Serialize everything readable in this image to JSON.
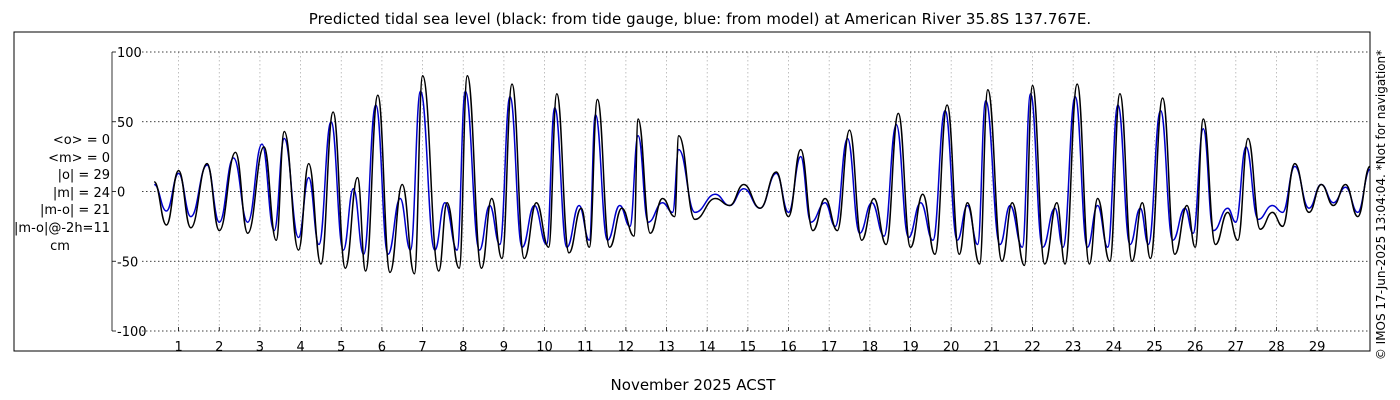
{
  "title": "Predicted tidal sea level (black: from tide gauge, blue: from model) at American River 35.8S 137.767E.",
  "stats": [
    "<o> = 0",
    "<m> = 0",
    "|o| = 29",
    "|m| = 24",
    "|m-o| = 21",
    "|m-o|@-2h=11"
  ],
  "stats_unit": "cm",
  "copyright": "© IMOS 17-Jun-2025 13:04:04. *Not for navigation*",
  "colors": {
    "observed": "#000000",
    "model": "#0000cc",
    "grid": "#b0b0b0"
  },
  "chart_data": {
    "type": "line",
    "title": "Predicted tidal sea level (black: from tide gauge, blue: from model) at American River 35.8S 137.767E.",
    "xlabel": "November 2025 ACST",
    "ylabel": "",
    "xlim": [
      0.1,
      30.3
    ],
    "ylim": [
      -100,
      100
    ],
    "xticks": [
      1,
      2,
      3,
      4,
      5,
      6,
      7,
      8,
      9,
      10,
      11,
      12,
      13,
      14,
      15,
      16,
      17,
      18,
      19,
      20,
      21,
      22,
      23,
      24,
      25,
      26,
      27,
      28,
      29
    ],
    "yticks": [
      -100,
      -50,
      0,
      50,
      100
    ],
    "grid": true,
    "series": [
      {
        "name": "black: from tide gauge",
        "color": "#000000",
        "peaks": [
          {
            "x": 0.4,
            "y": 7
          },
          {
            "x": 0.7,
            "y": -24
          },
          {
            "x": 1.0,
            "y": 15
          },
          {
            "x": 1.3,
            "y": -26
          },
          {
            "x": 1.7,
            "y": 20
          },
          {
            "x": 2.0,
            "y": -28
          },
          {
            "x": 2.4,
            "y": 28
          },
          {
            "x": 2.7,
            "y": -30
          },
          {
            "x": 3.1,
            "y": 32
          },
          {
            "x": 3.4,
            "y": -35
          },
          {
            "x": 3.6,
            "y": 43
          },
          {
            "x": 3.95,
            "y": -42
          },
          {
            "x": 4.2,
            "y": 20
          },
          {
            "x": 4.5,
            "y": -52
          },
          {
            "x": 4.8,
            "y": 57
          },
          {
            "x": 5.1,
            "y": -55
          },
          {
            "x": 5.4,
            "y": 10
          },
          {
            "x": 5.6,
            "y": -57
          },
          {
            "x": 5.9,
            "y": 69
          },
          {
            "x": 6.2,
            "y": -58
          },
          {
            "x": 6.5,
            "y": 5
          },
          {
            "x": 6.8,
            "y": -59
          },
          {
            "x": 7.0,
            "y": 83
          },
          {
            "x": 7.4,
            "y": -57
          },
          {
            "x": 7.6,
            "y": -8
          },
          {
            "x": 7.9,
            "y": -55
          },
          {
            "x": 8.1,
            "y": 83
          },
          {
            "x": 8.45,
            "y": -55
          },
          {
            "x": 8.7,
            "y": -5
          },
          {
            "x": 8.95,
            "y": -48
          },
          {
            "x": 9.2,
            "y": 77
          },
          {
            "x": 9.5,
            "y": -48
          },
          {
            "x": 9.8,
            "y": -8
          },
          {
            "x": 10.1,
            "y": -40
          },
          {
            "x": 10.3,
            "y": 70
          },
          {
            "x": 10.6,
            "y": -44
          },
          {
            "x": 10.9,
            "y": -12
          },
          {
            "x": 11.1,
            "y": -40
          },
          {
            "x": 11.3,
            "y": 66
          },
          {
            "x": 11.6,
            "y": -40
          },
          {
            "x": 11.9,
            "y": -12
          },
          {
            "x": 12.2,
            "y": -32
          },
          {
            "x": 12.3,
            "y": 52
          },
          {
            "x": 12.6,
            "y": -30
          },
          {
            "x": 12.9,
            "y": -5
          },
          {
            "x": 13.2,
            "y": -18
          },
          {
            "x": 13.3,
            "y": 40
          },
          {
            "x": 13.7,
            "y": -20
          },
          {
            "x": 14.2,
            "y": -5
          },
          {
            "x": 14.55,
            "y": -10
          },
          {
            "x": 14.9,
            "y": 5
          },
          {
            "x": 15.3,
            "y": -12
          },
          {
            "x": 15.7,
            "y": 14
          },
          {
            "x": 16.0,
            "y": -18
          },
          {
            "x": 16.3,
            "y": 30
          },
          {
            "x": 16.6,
            "y": -28
          },
          {
            "x": 16.9,
            "y": -5
          },
          {
            "x": 17.2,
            "y": -28
          },
          {
            "x": 17.5,
            "y": 44
          },
          {
            "x": 17.8,
            "y": -35
          },
          {
            "x": 18.1,
            "y": -5
          },
          {
            "x": 18.4,
            "y": -38
          },
          {
            "x": 18.7,
            "y": 56
          },
          {
            "x": 19.0,
            "y": -40
          },
          {
            "x": 19.3,
            "y": -2
          },
          {
            "x": 19.6,
            "y": -45
          },
          {
            "x": 19.9,
            "y": 62
          },
          {
            "x": 20.2,
            "y": -45
          },
          {
            "x": 20.4,
            "y": -8
          },
          {
            "x": 20.7,
            "y": -52
          },
          {
            "x": 20.9,
            "y": 73
          },
          {
            "x": 21.25,
            "y": -50
          },
          {
            "x": 21.5,
            "y": -8
          },
          {
            "x": 21.8,
            "y": -53
          },
          {
            "x": 22.0,
            "y": 76
          },
          {
            "x": 22.3,
            "y": -52
          },
          {
            "x": 22.6,
            "y": -8
          },
          {
            "x": 22.8,
            "y": -52
          },
          {
            "x": 23.1,
            "y": 77
          },
          {
            "x": 23.4,
            "y": -52
          },
          {
            "x": 23.6,
            "y": -5
          },
          {
            "x": 23.9,
            "y": -50
          },
          {
            "x": 24.15,
            "y": 70
          },
          {
            "x": 24.45,
            "y": -50
          },
          {
            "x": 24.7,
            "y": -8
          },
          {
            "x": 24.9,
            "y": -48
          },
          {
            "x": 25.2,
            "y": 67
          },
          {
            "x": 25.5,
            "y": -45
          },
          {
            "x": 25.8,
            "y": -10
          },
          {
            "x": 26.0,
            "y": -40
          },
          {
            "x": 26.2,
            "y": 52
          },
          {
            "x": 26.5,
            "y": -38
          },
          {
            "x": 26.8,
            "y": -15
          },
          {
            "x": 27.05,
            "y": -35
          },
          {
            "x": 27.3,
            "y": 38
          },
          {
            "x": 27.6,
            "y": -27
          },
          {
            "x": 27.9,
            "y": -15
          },
          {
            "x": 28.15,
            "y": -25
          },
          {
            "x": 28.45,
            "y": 20
          },
          {
            "x": 28.8,
            "y": -15
          },
          {
            "x": 29.1,
            "y": 5
          },
          {
            "x": 29.4,
            "y": -10
          },
          {
            "x": 29.7,
            "y": 5
          },
          {
            "x": 30.0,
            "y": -18
          },
          {
            "x": 30.3,
            "y": 18
          }
        ]
      },
      {
        "name": "blue: from model",
        "color": "#0000cc",
        "peaks": [
          {
            "x": 0.4,
            "y": 5
          },
          {
            "x": 0.7,
            "y": -14
          },
          {
            "x": 1.0,
            "y": 13
          },
          {
            "x": 1.3,
            "y": -18
          },
          {
            "x": 1.7,
            "y": 19
          },
          {
            "x": 2.0,
            "y": -22
          },
          {
            "x": 2.35,
            "y": 24
          },
          {
            "x": 2.7,
            "y": -22
          },
          {
            "x": 3.05,
            "y": 34
          },
          {
            "x": 3.35,
            "y": -28
          },
          {
            "x": 3.6,
            "y": 38
          },
          {
            "x": 3.95,
            "y": -33
          },
          {
            "x": 4.2,
            "y": 10
          },
          {
            "x": 4.45,
            "y": -38
          },
          {
            "x": 4.75,
            "y": 50
          },
          {
            "x": 5.05,
            "y": -42
          },
          {
            "x": 5.3,
            "y": 2
          },
          {
            "x": 5.55,
            "y": -45
          },
          {
            "x": 5.85,
            "y": 62
          },
          {
            "x": 6.15,
            "y": -45
          },
          {
            "x": 6.45,
            "y": -5
          },
          {
            "x": 6.7,
            "y": -42
          },
          {
            "x": 6.95,
            "y": 72
          },
          {
            "x": 7.3,
            "y": -42
          },
          {
            "x": 7.55,
            "y": -8
          },
          {
            "x": 7.85,
            "y": -42
          },
          {
            "x": 8.05,
            "y": 72
          },
          {
            "x": 8.4,
            "y": -42
          },
          {
            "x": 8.65,
            "y": -10
          },
          {
            "x": 8.9,
            "y": -38
          },
          {
            "x": 9.15,
            "y": 68
          },
          {
            "x": 9.45,
            "y": -40
          },
          {
            "x": 9.75,
            "y": -10
          },
          {
            "x": 10.05,
            "y": -38
          },
          {
            "x": 10.25,
            "y": 60
          },
          {
            "x": 10.55,
            "y": -40
          },
          {
            "x": 10.85,
            "y": -10
          },
          {
            "x": 11.1,
            "y": -35
          },
          {
            "x": 11.25,
            "y": 55
          },
          {
            "x": 11.55,
            "y": -35
          },
          {
            "x": 11.85,
            "y": -10
          },
          {
            "x": 12.1,
            "y": -25
          },
          {
            "x": 12.3,
            "y": 40
          },
          {
            "x": 12.55,
            "y": -22
          },
          {
            "x": 12.9,
            "y": -8
          },
          {
            "x": 13.15,
            "y": -15
          },
          {
            "x": 13.3,
            "y": 30
          },
          {
            "x": 13.7,
            "y": -15
          },
          {
            "x": 14.2,
            "y": -2
          },
          {
            "x": 14.55,
            "y": -10
          },
          {
            "x": 14.9,
            "y": 2
          },
          {
            "x": 15.3,
            "y": -12
          },
          {
            "x": 15.7,
            "y": 13
          },
          {
            "x": 16.0,
            "y": -15
          },
          {
            "x": 16.3,
            "y": 25
          },
          {
            "x": 16.55,
            "y": -22
          },
          {
            "x": 16.9,
            "y": -8
          },
          {
            "x": 17.15,
            "y": -25
          },
          {
            "x": 17.45,
            "y": 38
          },
          {
            "x": 17.75,
            "y": -30
          },
          {
            "x": 18.05,
            "y": -8
          },
          {
            "x": 18.35,
            "y": -32
          },
          {
            "x": 18.65,
            "y": 48
          },
          {
            "x": 18.95,
            "y": -33
          },
          {
            "x": 19.25,
            "y": -8
          },
          {
            "x": 19.55,
            "y": -35
          },
          {
            "x": 19.85,
            "y": 58
          },
          {
            "x": 20.15,
            "y": -35
          },
          {
            "x": 20.4,
            "y": -10
          },
          {
            "x": 20.65,
            "y": -38
          },
          {
            "x": 20.85,
            "y": 65
          },
          {
            "x": 21.2,
            "y": -38
          },
          {
            "x": 21.45,
            "y": -10
          },
          {
            "x": 21.75,
            "y": -40
          },
          {
            "x": 21.95,
            "y": 70
          },
          {
            "x": 22.25,
            "y": -40
          },
          {
            "x": 22.55,
            "y": -12
          },
          {
            "x": 22.75,
            "y": -40
          },
          {
            "x": 23.05,
            "y": 68
          },
          {
            "x": 23.35,
            "y": -40
          },
          {
            "x": 23.6,
            "y": -10
          },
          {
            "x": 23.85,
            "y": -40
          },
          {
            "x": 24.1,
            "y": 62
          },
          {
            "x": 24.4,
            "y": -38
          },
          {
            "x": 24.65,
            "y": -12
          },
          {
            "x": 24.85,
            "y": -38
          },
          {
            "x": 25.15,
            "y": 58
          },
          {
            "x": 25.45,
            "y": -35
          },
          {
            "x": 25.75,
            "y": -12
          },
          {
            "x": 25.95,
            "y": -30
          },
          {
            "x": 26.2,
            "y": 45
          },
          {
            "x": 26.45,
            "y": -28
          },
          {
            "x": 26.8,
            "y": -12
          },
          {
            "x": 27.0,
            "y": -22
          },
          {
            "x": 27.25,
            "y": 32
          },
          {
            "x": 27.55,
            "y": -20
          },
          {
            "x": 27.9,
            "y": -10
          },
          {
            "x": 28.15,
            "y": -15
          },
          {
            "x": 28.45,
            "y": 18
          },
          {
            "x": 28.8,
            "y": -12
          },
          {
            "x": 29.1,
            "y": 5
          },
          {
            "x": 29.4,
            "y": -8
          },
          {
            "x": 29.7,
            "y": 3
          },
          {
            "x": 30.0,
            "y": -15
          },
          {
            "x": 30.3,
            "y": 16
          }
        ]
      }
    ]
  }
}
